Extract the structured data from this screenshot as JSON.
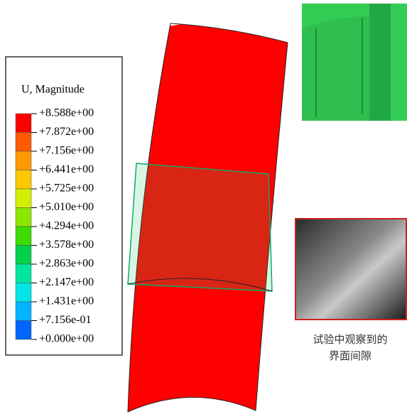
{
  "legend": {
    "title": "U, Magnitude",
    "levels": [
      "+8.588e+00",
      "+7.872e+00",
      "+7.156e+00",
      "+6.441e+00",
      "+5.725e+00",
      "+5.010e+00",
      "+4.294e+00",
      "+3.578e+00",
      "+2.863e+00",
      "+2.147e+00",
      "+1.431e+00",
      "+7.156e-01",
      "+0.000e+00"
    ],
    "colors": [
      "#ff0000",
      "#ff5a00",
      "#ff9a00",
      "#ffc800",
      "#d2f000",
      "#8ce600",
      "#3cdc00",
      "#00d24a",
      "#00e6a0",
      "#00e6e6",
      "#00b4ff",
      "#0064ff",
      "#0000e6"
    ]
  },
  "caption": {
    "lines": [
      "试验中观察到的",
      "界面间隙"
    ]
  }
}
